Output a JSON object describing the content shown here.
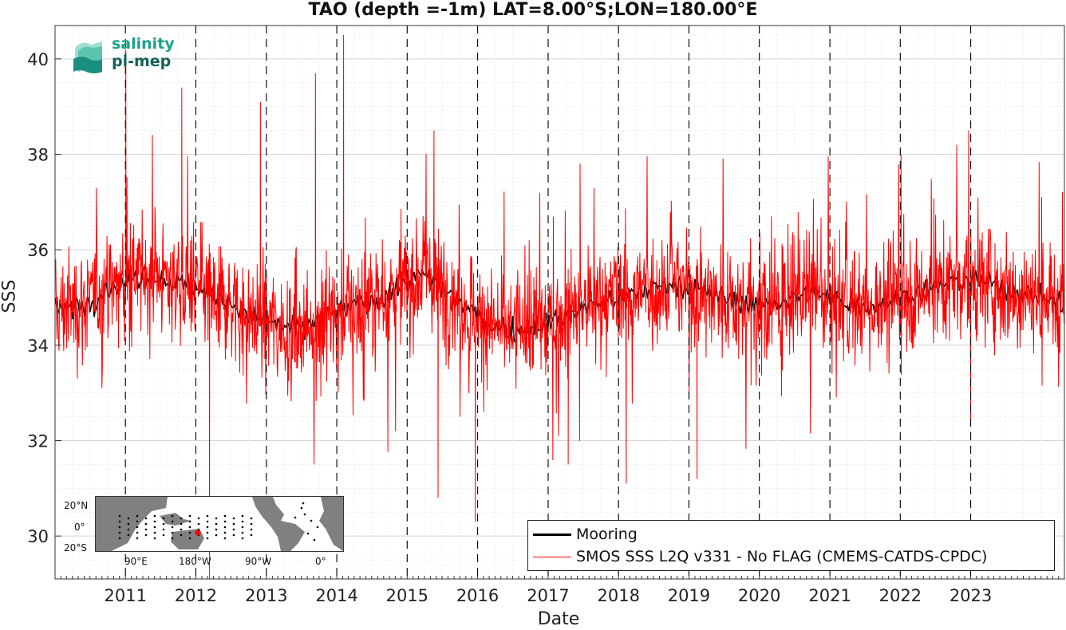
{
  "chart_data": {
    "type": "line",
    "title": "TAO (depth =-1m) LAT=8.00°S;LON=180.00°E",
    "xlabel": "Date",
    "ylabel": "SSS",
    "xlim": [
      "2010-01-01",
      "2024-05-01"
    ],
    "ylim": [
      29.1,
      40.7
    ],
    "yticks": [
      30,
      32,
      34,
      36,
      38,
      40
    ],
    "xticks": [
      "2011",
      "2012",
      "2013",
      "2014",
      "2015",
      "2016",
      "2017",
      "2018",
      "2019",
      "2020",
      "2021",
      "2022",
      "2023"
    ],
    "grid": true,
    "year_boundaries_dashed": true,
    "legend_position": "bottom-right",
    "series": [
      {
        "name": "Mooring",
        "color": "#000000",
        "x": [
          "2010-01-01",
          "2010-04-01",
          "2010-07-01",
          "2010-10-01",
          "2011-01-01",
          "2011-04-01",
          "2011-07-01",
          "2011-10-01",
          "2012-01-01",
          "2012-04-01",
          "2012-07-01",
          "2012-10-01",
          "2013-01-01",
          "2013-04-01",
          "2013-07-01",
          "2013-10-01",
          "2014-01-01",
          "2014-04-01",
          "2014-07-01",
          "2014-10-01",
          "2015-01-01",
          "2015-04-01",
          "2015-07-01",
          "2015-10-01",
          "2016-01-01",
          "2016-04-01",
          "2016-07-01",
          "2016-10-01",
          "2017-01-01",
          "2017-04-01",
          "2017-07-01",
          "2017-10-01",
          "2018-01-01",
          "2018-04-01",
          "2018-07-01",
          "2018-10-01",
          "2019-01-01",
          "2019-04-01",
          "2019-07-01",
          "2019-10-01",
          "2020-01-01",
          "2020-04-01",
          "2020-07-01",
          "2020-10-01",
          "2021-01-01",
          "2021-04-01",
          "2021-07-01",
          "2021-10-01",
          "2022-01-01",
          "2022-04-01",
          "2022-07-01",
          "2022-10-01",
          "2023-01-01",
          "2023-04-01",
          "2023-07-01",
          "2023-10-01",
          "2024-01-01",
          "2024-04-01"
        ],
        "y": [
          34.7,
          34.8,
          34.9,
          35.2,
          35.3,
          35.5,
          35.4,
          35.3,
          35.2,
          35.0,
          34.9,
          34.6,
          34.5,
          34.4,
          34.3,
          34.6,
          34.7,
          34.8,
          34.9,
          35.1,
          35.3,
          35.5,
          35.2,
          34.9,
          34.6,
          34.4,
          34.3,
          34.4,
          34.5,
          34.6,
          34.8,
          34.9,
          35.0,
          35.1,
          35.2,
          35.3,
          35.2,
          35.1,
          35.0,
          34.9,
          34.8,
          34.9,
          35.0,
          35.1,
          35.0,
          34.9,
          34.8,
          34.9,
          35.0,
          35.1,
          35.2,
          35.3,
          35.4,
          35.3,
          35.2,
          35.1,
          35.0,
          34.9
        ]
      },
      {
        "name": "SMOS SSS L2Q v331 - No FLAG  (CMEMS-CATDS-CPDC)",
        "color": "#ff0000",
        "mean": 35.0,
        "std": 0.8,
        "spikes": [
          {
            "x": "2011-01-03",
            "y": 40.2
          },
          {
            "x": "2011-10-20",
            "y": 39.4
          },
          {
            "x": "2012-03-12",
            "y": 29.1
          },
          {
            "x": "2012-12-01",
            "y": 39.1
          },
          {
            "x": "2013-09-12",
            "y": 39.7
          },
          {
            "x": "2014-02-05",
            "y": 40.5
          },
          {
            "x": "2015-05-20",
            "y": 38.5
          },
          {
            "x": "2015-06-10",
            "y": 30.8
          },
          {
            "x": "2015-12-20",
            "y": 30.3
          },
          {
            "x": "2017-04-15",
            "y": 31.5
          },
          {
            "x": "2018-02-10",
            "y": 31.1
          },
          {
            "x": "2019-02-12",
            "y": 31.2
          },
          {
            "x": "2022-01-05",
            "y": 38.0
          },
          {
            "x": "2023-01-01",
            "y": 32.3
          }
        ]
      }
    ]
  },
  "logo": {
    "line1": "salinity",
    "line2": "pi-mep"
  },
  "inset_map": {
    "lat_labels": [
      "20°N",
      "0°",
      "20°S"
    ],
    "lon_labels": [
      "90°E",
      "180°W",
      "90°W",
      "0°"
    ],
    "highlight_color": "#ff0000"
  },
  "legend": {
    "mooring_label": "Mooring",
    "smos_label": "SMOS SSS L2Q v331 - No FLAG  (CMEMS-CATDS-CPDC)"
  }
}
